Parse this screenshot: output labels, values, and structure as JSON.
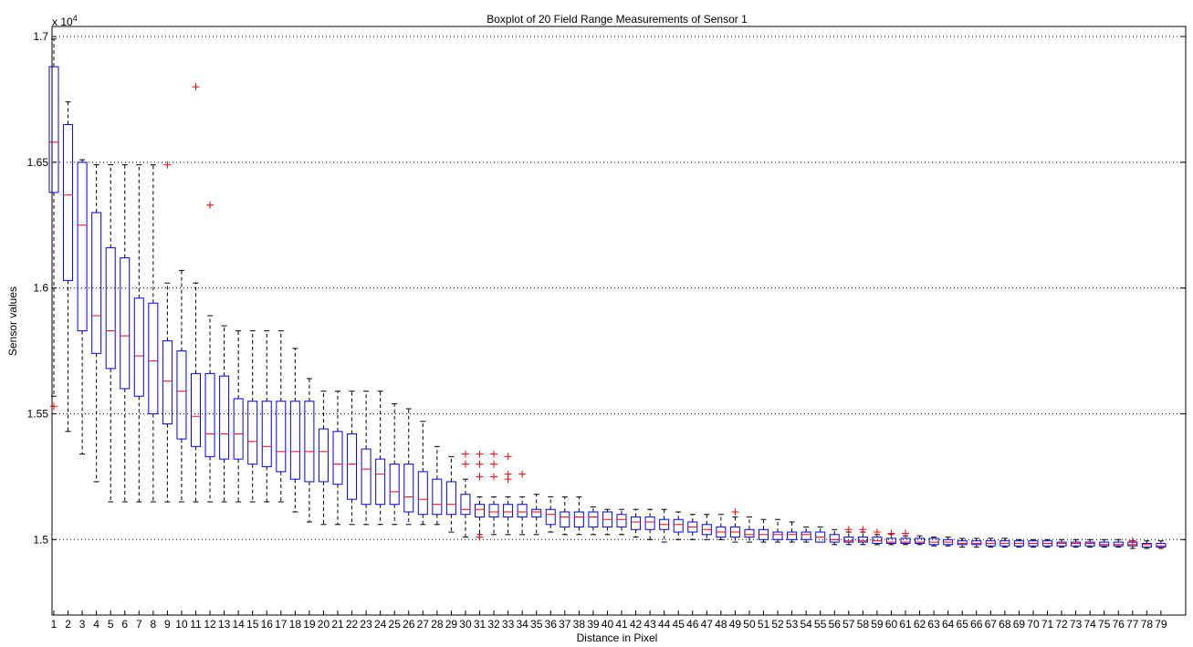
{
  "chart_data": {
    "type": "boxplot",
    "title": "Boxplot of 20 Field Range Measurements of Sensor 1",
    "xlabel": "Distance in Pixel",
    "ylabel": "Sensor values",
    "y_exponent_label": "x 10",
    "y_exponent_power": "4",
    "ylim": [
      14700,
      17040
    ],
    "yticks": [
      15000,
      15500,
      16000,
      16500,
      17000
    ],
    "ytick_labels": [
      "1.5",
      "1.55",
      "1.6",
      "1.65",
      "1.7"
    ],
    "grid": "horizontal dotted",
    "colors": {
      "box": "#0000ff",
      "median": "#ff0000",
      "outlier": "#ff0000",
      "whisker": "#000000"
    },
    "categories": [
      "1",
      "2",
      "3",
      "4",
      "5",
      "6",
      "7",
      "8",
      "9",
      "10",
      "11",
      "12",
      "13",
      "14",
      "15",
      "16",
      "17",
      "18",
      "19",
      "20",
      "21",
      "22",
      "23",
      "24",
      "25",
      "26",
      "27",
      "28",
      "29",
      "30",
      "31",
      "32",
      "33",
      "34",
      "35",
      "36",
      "37",
      "38",
      "39",
      "40",
      "41",
      "42",
      "43",
      "44",
      "45",
      "46",
      "47",
      "48",
      "49",
      "50",
      "51",
      "52",
      "53",
      "54",
      "55",
      "56",
      "57",
      "58",
      "59",
      "60",
      "61",
      "62",
      "63",
      "64",
      "65",
      "66",
      "67",
      "68",
      "69",
      "70",
      "71",
      "72",
      "73",
      "74",
      "75",
      "76",
      "77",
      "78",
      "79"
    ],
    "boxes": [
      {
        "x": 1,
        "low": 15570,
        "q1": 16380,
        "median": 16580,
        "q3": 16880,
        "high": 16990,
        "outliers": [
          15530
        ]
      },
      {
        "x": 2,
        "low": 15430,
        "q1": 16030,
        "median": 16370,
        "q3": 16650,
        "high": 16740,
        "outliers": []
      },
      {
        "x": 3,
        "low": 15340,
        "q1": 15830,
        "median": 16250,
        "q3": 16500,
        "high": 16510,
        "outliers": []
      },
      {
        "x": 4,
        "low": 15230,
        "q1": 15740,
        "median": 15890,
        "q3": 16300,
        "high": 16490,
        "outliers": []
      },
      {
        "x": 5,
        "low": 15150,
        "q1": 15680,
        "median": 15830,
        "q3": 16160,
        "high": 16490,
        "outliers": []
      },
      {
        "x": 6,
        "low": 15150,
        "q1": 15600,
        "median": 15810,
        "q3": 16120,
        "high": 16490,
        "outliers": []
      },
      {
        "x": 7,
        "low": 15150,
        "q1": 15570,
        "median": 15730,
        "q3": 15960,
        "high": 16490,
        "outliers": []
      },
      {
        "x": 8,
        "low": 15150,
        "q1": 15500,
        "median": 15710,
        "q3": 15940,
        "high": 16490,
        "outliers": []
      },
      {
        "x": 9,
        "low": 15150,
        "q1": 15460,
        "median": 15630,
        "q3": 15790,
        "high": 16020,
        "outliers": [
          16490
        ]
      },
      {
        "x": 10,
        "low": 15150,
        "q1": 15400,
        "median": 15590,
        "q3": 15750,
        "high": 16070,
        "outliers": []
      },
      {
        "x": 11,
        "low": 15150,
        "q1": 15370,
        "median": 15490,
        "q3": 15660,
        "high": 16020,
        "outliers": [
          16800
        ]
      },
      {
        "x": 12,
        "low": 15150,
        "q1": 15330,
        "median": 15420,
        "q3": 15660,
        "high": 15890,
        "outliers": [
          16330
        ]
      },
      {
        "x": 13,
        "low": 15150,
        "q1": 15320,
        "median": 15420,
        "q3": 15650,
        "high": 15850,
        "outliers": []
      },
      {
        "x": 14,
        "low": 15150,
        "q1": 15320,
        "median": 15420,
        "q3": 15560,
        "high": 15830,
        "outliers": []
      },
      {
        "x": 15,
        "low": 15150,
        "q1": 15300,
        "median": 15390,
        "q3": 15550,
        "high": 15830,
        "outliers": []
      },
      {
        "x": 16,
        "low": 15150,
        "q1": 15290,
        "median": 15370,
        "q3": 15550,
        "high": 15830,
        "outliers": []
      },
      {
        "x": 17,
        "low": 15150,
        "q1": 15270,
        "median": 15350,
        "q3": 15550,
        "high": 15830,
        "outliers": []
      },
      {
        "x": 18,
        "low": 15110,
        "q1": 15240,
        "median": 15350,
        "q3": 15550,
        "high": 15760,
        "outliers": []
      },
      {
        "x": 19,
        "low": 15070,
        "q1": 15230,
        "median": 15350,
        "q3": 15550,
        "high": 15640,
        "outliers": []
      },
      {
        "x": 20,
        "low": 15060,
        "q1": 15230,
        "median": 15350,
        "q3": 15440,
        "high": 15590,
        "outliers": []
      },
      {
        "x": 21,
        "low": 15060,
        "q1": 15220,
        "median": 15300,
        "q3": 15430,
        "high": 15590,
        "outliers": []
      },
      {
        "x": 22,
        "low": 15060,
        "q1": 15160,
        "median": 15300,
        "q3": 15420,
        "high": 15590,
        "outliers": []
      },
      {
        "x": 23,
        "low": 15060,
        "q1": 15140,
        "median": 15280,
        "q3": 15360,
        "high": 15590,
        "outliers": []
      },
      {
        "x": 24,
        "low": 15060,
        "q1": 15140,
        "median": 15260,
        "q3": 15320,
        "high": 15590,
        "outliers": []
      },
      {
        "x": 25,
        "low": 15060,
        "q1": 15140,
        "median": 15190,
        "q3": 15300,
        "high": 15540,
        "outliers": []
      },
      {
        "x": 26,
        "low": 15060,
        "q1": 15110,
        "median": 15170,
        "q3": 15300,
        "high": 15520,
        "outliers": []
      },
      {
        "x": 27,
        "low": 15060,
        "q1": 15100,
        "median": 15160,
        "q3": 15270,
        "high": 15470,
        "outliers": []
      },
      {
        "x": 28,
        "low": 15060,
        "q1": 15100,
        "median": 15140,
        "q3": 15240,
        "high": 15370,
        "outliers": []
      },
      {
        "x": 29,
        "low": 15030,
        "q1": 15100,
        "median": 15140,
        "q3": 15230,
        "high": 15330,
        "outliers": []
      },
      {
        "x": 30,
        "low": 15010,
        "q1": 15100,
        "median": 15120,
        "q3": 15180,
        "high": 15240,
        "outliers": [
          15300,
          15340
        ]
      },
      {
        "x": 31,
        "low": 15020,
        "q1": 15090,
        "median": 15120,
        "q3": 15140,
        "high": 15170,
        "outliers": [
          15010,
          15250,
          15300,
          15340
        ]
      },
      {
        "x": 32,
        "low": 15020,
        "q1": 15090,
        "median": 15110,
        "q3": 15140,
        "high": 15170,
        "outliers": [
          15250,
          15300,
          15340
        ]
      },
      {
        "x": 33,
        "low": 15020,
        "q1": 15090,
        "median": 15110,
        "q3": 15140,
        "high": 15170,
        "outliers": [
          15240,
          15260,
          15330
        ]
      },
      {
        "x": 34,
        "low": 15020,
        "q1": 15090,
        "median": 15110,
        "q3": 15140,
        "high": 15170,
        "outliers": [
          15260
        ]
      },
      {
        "x": 35,
        "low": 15020,
        "q1": 15090,
        "median": 15110,
        "q3": 15120,
        "high": 15180,
        "outliers": []
      },
      {
        "x": 36,
        "low": 15030,
        "q1": 15060,
        "median": 15100,
        "q3": 15120,
        "high": 15170,
        "outliers": []
      },
      {
        "x": 37,
        "low": 15020,
        "q1": 15050,
        "median": 15090,
        "q3": 15110,
        "high": 15170,
        "outliers": []
      },
      {
        "x": 38,
        "low": 15020,
        "q1": 15050,
        "median": 15090,
        "q3": 15110,
        "high": 15170,
        "outliers": []
      },
      {
        "x": 39,
        "low": 15020,
        "q1": 15050,
        "median": 15090,
        "q3": 15110,
        "high": 15130,
        "outliers": []
      },
      {
        "x": 40,
        "low": 15020,
        "q1": 15050,
        "median": 15080,
        "q3": 15110,
        "high": 15120,
        "outliers": []
      },
      {
        "x": 41,
        "low": 15020,
        "q1": 15050,
        "median": 15080,
        "q3": 15100,
        "high": 15120,
        "outliers": []
      },
      {
        "x": 42,
        "low": 15010,
        "q1": 15040,
        "median": 15070,
        "q3": 15090,
        "high": 15120,
        "outliers": []
      },
      {
        "x": 43,
        "low": 15000,
        "q1": 15040,
        "median": 15070,
        "q3": 15090,
        "high": 15120,
        "outliers": []
      },
      {
        "x": 44,
        "low": 14990,
        "q1": 15040,
        "median": 15060,
        "q3": 15080,
        "high": 15120,
        "outliers": []
      },
      {
        "x": 45,
        "low": 15000,
        "q1": 15030,
        "median": 15060,
        "q3": 15080,
        "high": 15110,
        "outliers": []
      },
      {
        "x": 46,
        "low": 15000,
        "q1": 15030,
        "median": 15050,
        "q3": 15070,
        "high": 15100,
        "outliers": []
      },
      {
        "x": 47,
        "low": 15000,
        "q1": 15020,
        "median": 15040,
        "q3": 15060,
        "high": 15100,
        "outliers": []
      },
      {
        "x": 48,
        "low": 15000,
        "q1": 15010,
        "median": 15030,
        "q3": 15050,
        "high": 15100,
        "outliers": []
      },
      {
        "x": 49,
        "low": 14990,
        "q1": 15010,
        "median": 15030,
        "q3": 15050,
        "high": 15090,
        "outliers": [
          15110
        ]
      },
      {
        "x": 50,
        "low": 14990,
        "q1": 15010,
        "median": 15020,
        "q3": 15040,
        "high": 15090,
        "outliers": []
      },
      {
        "x": 51,
        "low": 14990,
        "q1": 15000,
        "median": 15020,
        "q3": 15040,
        "high": 15080,
        "outliers": []
      },
      {
        "x": 52,
        "low": 14990,
        "q1": 15000,
        "median": 15020,
        "q3": 15030,
        "high": 15080,
        "outliers": []
      },
      {
        "x": 53,
        "low": 14990,
        "q1": 15000,
        "median": 15020,
        "q3": 15030,
        "high": 15070,
        "outliers": []
      },
      {
        "x": 54,
        "low": 14990,
        "q1": 15000,
        "median": 15020,
        "q3": 15030,
        "high": 15050,
        "outliers": []
      },
      {
        "x": 55,
        "low": 14990,
        "q1": 14990,
        "median": 15010,
        "q3": 15030,
        "high": 15050,
        "outliers": []
      },
      {
        "x": 56,
        "low": 14980,
        "q1": 14990,
        "median": 15000,
        "q3": 15020,
        "high": 15040,
        "outliers": []
      },
      {
        "x": 57,
        "low": 14980,
        "q1": 14990,
        "median": 14995,
        "q3": 15010,
        "high": 15030,
        "outliers": [
          15040
        ]
      },
      {
        "x": 58,
        "low": 14980,
        "q1": 14990,
        "median": 14995,
        "q3": 15010,
        "high": 15030,
        "outliers": [
          15040
        ]
      },
      {
        "x": 59,
        "low": 14980,
        "q1": 14985,
        "median": 14995,
        "q3": 15010,
        "high": 15020,
        "outliers": [
          15030
        ]
      },
      {
        "x": 60,
        "low": 14980,
        "q1": 14985,
        "median": 14990,
        "q3": 15005,
        "high": 15020,
        "outliers": [
          15025
        ]
      },
      {
        "x": 61,
        "low": 14980,
        "q1": 14985,
        "median": 14990,
        "q3": 15005,
        "high": 15015,
        "outliers": [
          15025
        ]
      },
      {
        "x": 62,
        "low": 14980,
        "q1": 14985,
        "median": 14990,
        "q3": 15005,
        "high": 15015,
        "outliers": []
      },
      {
        "x": 63,
        "low": 14975,
        "q1": 14980,
        "median": 14990,
        "q3": 15005,
        "high": 15010,
        "outliers": []
      },
      {
        "x": 64,
        "low": 14975,
        "q1": 14980,
        "median": 14990,
        "q3": 15000,
        "high": 15010,
        "outliers": []
      },
      {
        "x": 65,
        "low": 14970,
        "q1": 14980,
        "median": 14985,
        "q3": 14995,
        "high": 15005,
        "outliers": []
      },
      {
        "x": 66,
        "low": 14970,
        "q1": 14980,
        "median": 14985,
        "q3": 14995,
        "high": 15005,
        "outliers": []
      },
      {
        "x": 67,
        "low": 14970,
        "q1": 14975,
        "median": 14985,
        "q3": 14995,
        "high": 15005,
        "outliers": []
      },
      {
        "x": 68,
        "low": 14970,
        "q1": 14975,
        "median": 14985,
        "q3": 14995,
        "high": 15005,
        "outliers": []
      },
      {
        "x": 69,
        "low": 14970,
        "q1": 14975,
        "median": 14985,
        "q3": 14995,
        "high": 15000,
        "outliers": []
      },
      {
        "x": 70,
        "low": 14970,
        "q1": 14975,
        "median": 14985,
        "q3": 14995,
        "high": 15000,
        "outliers": []
      },
      {
        "x": 71,
        "low": 14970,
        "q1": 14975,
        "median": 14985,
        "q3": 14995,
        "high": 15000,
        "outliers": []
      },
      {
        "x": 72,
        "low": 14970,
        "q1": 14975,
        "median": 14985,
        "q3": 14990,
        "high": 15000,
        "outliers": []
      },
      {
        "x": 73,
        "low": 14970,
        "q1": 14975,
        "median": 14985,
        "q3": 14990,
        "high": 15000,
        "outliers": []
      },
      {
        "x": 74,
        "low": 14970,
        "q1": 14975,
        "median": 14985,
        "q3": 14990,
        "high": 15000,
        "outliers": []
      },
      {
        "x": 75,
        "low": 14970,
        "q1": 14975,
        "median": 14980,
        "q3": 14990,
        "high": 15000,
        "outliers": []
      },
      {
        "x": 76,
        "low": 14970,
        "q1": 14975,
        "median": 14980,
        "q3": 14990,
        "high": 15000,
        "outliers": []
      },
      {
        "x": 77,
        "low": 14965,
        "q1": 14975,
        "median": 14980,
        "q3": 14990,
        "high": 14995,
        "outliers": [
          14995
        ]
      },
      {
        "x": 78,
        "low": 14965,
        "q1": 14970,
        "median": 14980,
        "q3": 14985,
        "high": 14995,
        "outliers": []
      },
      {
        "x": 79,
        "low": 14965,
        "q1": 14970,
        "median": 14975,
        "q3": 14985,
        "high": 14995,
        "outliers": []
      }
    ]
  }
}
